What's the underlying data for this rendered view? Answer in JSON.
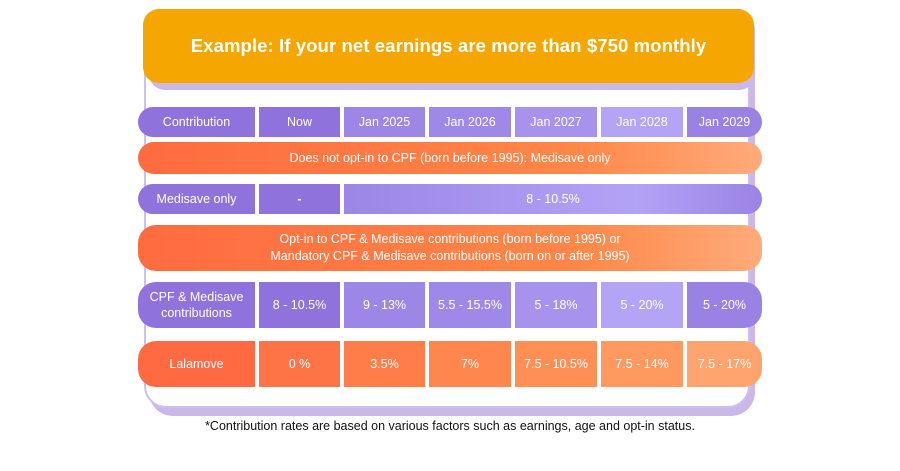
{
  "title": "Example: If your net earnings are more than $750 monthly",
  "header": {
    "label": "Contribution",
    "columns": [
      "Now",
      "Jan 2025",
      "Jan 2026",
      "Jan 2027",
      "Jan 2028",
      "Jan 2029"
    ]
  },
  "banner_no_opt_in": "Does not opt-in to CPF (born before 1995): Medisave only",
  "medisave_row": {
    "label": "Medisave only",
    "now": "-",
    "future": "8 - 10.5%"
  },
  "banner_opt_in": {
    "line1": "Opt-in to CPF & Medisave contributions (born before 1995) or",
    "line2": "Mandatory CPF & Medisave contributions (born on or after 1995)"
  },
  "cpf_row": {
    "label_line1": "CPF & Medisave",
    "label_line2": "contributions",
    "values": [
      "8 - 10.5%",
      "9 - 13%",
      "5.5 - 15.5%",
      "5 - 18%",
      "5 - 20%",
      "5 - 20%"
    ]
  },
  "lalamove_row": {
    "label": "Lalamove",
    "values": [
      "0 %",
      "3.5%",
      "7%",
      "7.5 - 10.5%",
      "7.5 - 14%",
      "7.5 - 17%"
    ]
  },
  "footnote": "*Contribution rates are based on various factors such as earnings, age and opt-in status.",
  "colors": {
    "title_bg": "#f6a600",
    "purple": "#8f72dc",
    "orange": "#ff7446",
    "frame": "#c9b8e8"
  }
}
